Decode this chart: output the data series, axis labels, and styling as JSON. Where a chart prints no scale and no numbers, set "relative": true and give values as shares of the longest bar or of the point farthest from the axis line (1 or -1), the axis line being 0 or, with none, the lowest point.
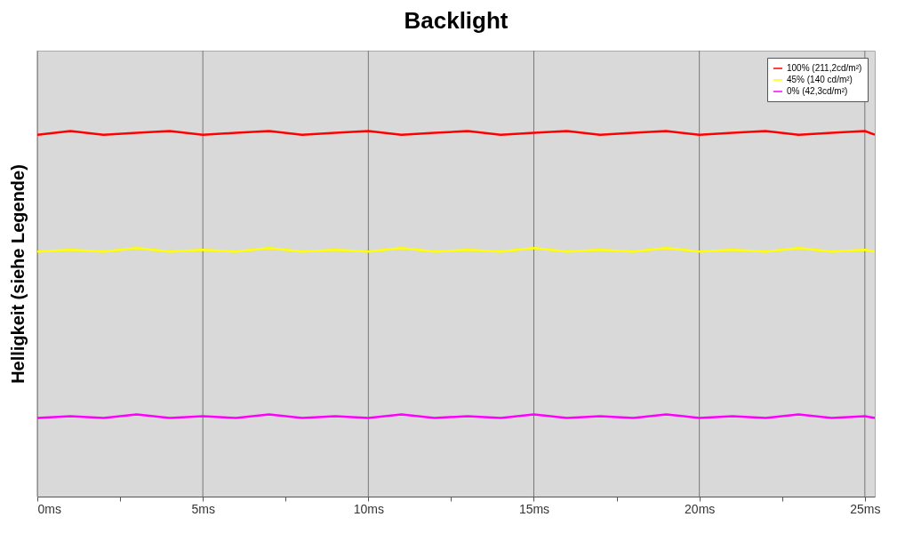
{
  "chart_data": {
    "type": "line",
    "title": "Backlight",
    "xlabel": null,
    "ylabel": "Helligkeit (siehe Legende)",
    "relative": true,
    "x": [
      0,
      1,
      2,
      3,
      4,
      5,
      6,
      7,
      8,
      9,
      10,
      11,
      12,
      13,
      14,
      15,
      16,
      17,
      18,
      19,
      20,
      21,
      22,
      23,
      24,
      25,
      25.3
    ],
    "series": [
      {
        "name": "100% (211,2cd/m²)",
        "color": "#ff0000",
        "values": [
          0.99,
          1.0,
          0.99,
          0.995,
          1.0,
          0.99,
          0.995,
          1.0,
          0.99,
          0.995,
          1.0,
          0.99,
          0.995,
          1.0,
          0.99,
          0.995,
          1.0,
          0.99,
          0.995,
          1.0,
          0.99,
          0.995,
          1.0,
          0.99,
          0.995,
          1.0,
          0.99
        ]
      },
      {
        "name": "45% (140 cd/m²)",
        "color": "#ffff00",
        "values": [
          0.67,
          0.675,
          0.67,
          0.68,
          0.67,
          0.675,
          0.67,
          0.68,
          0.67,
          0.675,
          0.67,
          0.68,
          0.67,
          0.675,
          0.67,
          0.68,
          0.67,
          0.675,
          0.67,
          0.68,
          0.67,
          0.675,
          0.67,
          0.68,
          0.67,
          0.675,
          0.67
        ]
      },
      {
        "name": "0% (42,3cd/m²)",
        "color": "#ff00ff",
        "values": [
          0.215,
          0.22,
          0.215,
          0.225,
          0.215,
          0.22,
          0.215,
          0.225,
          0.215,
          0.22,
          0.215,
          0.225,
          0.215,
          0.22,
          0.215,
          0.225,
          0.215,
          0.22,
          0.215,
          0.225,
          0.215,
          0.22,
          0.215,
          0.225,
          0.215,
          0.22,
          0.215
        ]
      }
    ],
    "xlim": [
      0,
      25.3
    ],
    "xticks": [
      {
        "value": 0,
        "label": "0ms"
      },
      {
        "value": 2.5,
        "label": null
      },
      {
        "value": 5,
        "label": "5ms"
      },
      {
        "value": 7.5,
        "label": null
      },
      {
        "value": 10,
        "label": "10ms"
      },
      {
        "value": 12.5,
        "label": null
      },
      {
        "value": 15,
        "label": "15ms"
      },
      {
        "value": 17.5,
        "label": null
      },
      {
        "value": 20,
        "label": "20ms"
      },
      {
        "value": 22.5,
        "label": null
      },
      {
        "value": 25,
        "label": "25ms"
      }
    ],
    "grid": "x",
    "legend": "top right",
    "marker": "none",
    "line_style": "solid"
  }
}
